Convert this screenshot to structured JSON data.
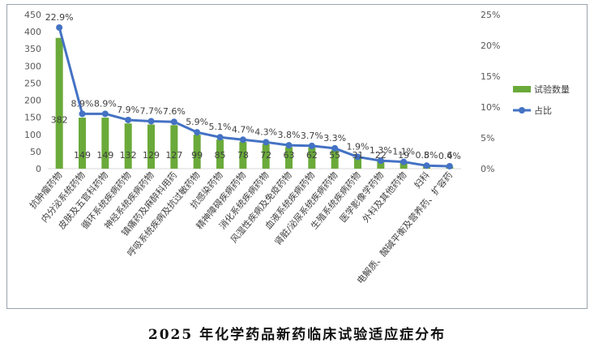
{
  "caption": "2025 年化学药品新药临床试验适应症分布",
  "chart_data": {
    "type": "bar+line",
    "categories": [
      "抗肿瘤药物",
      "内分泌系统药物",
      "皮肤及五官科药物",
      "循环系统疾病药物",
      "神经系统疾病药物",
      "镇痛药及麻醉科用药",
      "呼吸系统疾病及抗过敏药物",
      "抗感染药物",
      "精神障碍疾病药物",
      "消化系统疾病药物",
      "风湿性疾病及免疫药物",
      "血液系统疾病药物",
      "肾脏/泌尿系统疾病药物",
      "生殖系统疾病药物",
      "医学影像学药物",
      "外科及其他药物",
      "妇科",
      "电解质、酸碱平衡及营养药、扩容药"
    ],
    "series": [
      {
        "name": "试验数量",
        "axis": "left",
        "type": "bar",
        "color": "#6aaa3a",
        "values": [
          382,
          149,
          149,
          132,
          129,
          127,
          99,
          85,
          78,
          72,
          63,
          62,
          55,
          31,
          22,
          19,
          8,
          6
        ]
      },
      {
        "name": "占比",
        "axis": "right",
        "type": "line",
        "color": "#4472c4",
        "values": [
          22.9,
          8.9,
          8.9,
          7.9,
          7.7,
          7.6,
          5.9,
          5.1,
          4.7,
          4.3,
          3.8,
          3.7,
          3.3,
          1.9,
          1.3,
          1.1,
          0.5,
          0.4
        ],
        "labels": [
          "22.9%",
          "8.9%",
          "8.9%",
          "7.9%",
          "7.7%",
          "7.6%",
          "5.9%",
          "5.1%",
          "4.7%",
          "4.3%",
          "3.8%",
          "3.7%",
          "3.3%",
          "1.9%",
          "1.3%",
          "1.1%",
          "0.5%",
          "0.4%"
        ]
      }
    ],
    "left_axis": {
      "ylim": [
        0,
        450
      ],
      "ticks": [
        "0",
        "50",
        "100",
        "150",
        "200",
        "250",
        "300",
        "350",
        "400",
        "450"
      ]
    },
    "right_axis": {
      "ylim": [
        0,
        25
      ],
      "ticks": [
        "0%",
        "5%",
        "10%",
        "15%",
        "20%",
        "25%"
      ]
    },
    "grid": false,
    "legend": {
      "position": "right",
      "entries": [
        "试验数量",
        "占比"
      ]
    }
  }
}
